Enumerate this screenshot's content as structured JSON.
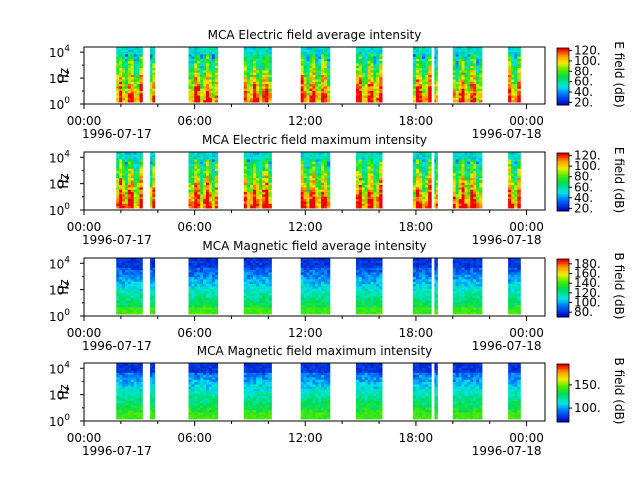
{
  "chart_data": [
    {
      "type": "heatmap",
      "title": "MCA  Electric field average intensity",
      "ylabel": "Hz",
      "yscale": "log",
      "y_tick_labels": [
        "10^0",
        "10^2",
        "10^4"
      ],
      "ylim": [
        "10^0",
        "10^4.4"
      ],
      "x_tick_labels": [
        "00:00",
        "06:00",
        "12:00",
        "18:00",
        "00:00"
      ],
      "x_date_labels": [
        "1996-07-17",
        "1996-07-18"
      ],
      "xlim": [
        "1996-07-17 00:00",
        "1996-07-18 01:00"
      ],
      "colorbar": {
        "label": "E field (dB)",
        "tick_labels": [
          "20.",
          "40.",
          "60.",
          "80.",
          "100.",
          "120."
        ],
        "range": [
          15,
          125
        ]
      },
      "colormap": "rainbow",
      "data_intervals": [
        [
          "01:45",
          "03:10"
        ],
        [
          "03:35",
          "03:50"
        ],
        [
          "05:40",
          "07:15"
        ],
        [
          "08:40",
          "10:10"
        ],
        [
          "11:45",
          "13:20"
        ],
        [
          "14:45",
          "16:10"
        ],
        [
          "17:50",
          "18:50"
        ],
        [
          "19:00",
          "19:10"
        ],
        [
          "20:00",
          "21:35"
        ],
        [
          "23:00",
          "23:40"
        ]
      ],
      "note_levels": "intensity higher at low frequency"
    },
    {
      "type": "heatmap",
      "title": "MCA  Electric field maximum intensity",
      "ylabel": "Hz",
      "yscale": "log",
      "y_tick_labels": [
        "10^0",
        "10^2",
        "10^4"
      ],
      "ylim": [
        "10^0",
        "10^4.4"
      ],
      "x_tick_labels": [
        "00:00",
        "06:00",
        "12:00",
        "18:00",
        "00:00"
      ],
      "x_date_labels": [
        "1996-07-17",
        "1996-07-18"
      ],
      "xlim": [
        "1996-07-17 00:00",
        "1996-07-18 01:00"
      ],
      "colorbar": {
        "label": "E field (dB)",
        "tick_labels": [
          "20.",
          "40.",
          "60.",
          "80.",
          "100.",
          "120."
        ],
        "range": [
          15,
          125
        ]
      },
      "colormap": "rainbow",
      "data_intervals": [
        [
          "01:45",
          "03:10"
        ],
        [
          "03:35",
          "03:50"
        ],
        [
          "05:40",
          "07:15"
        ],
        [
          "08:40",
          "10:10"
        ],
        [
          "11:45",
          "13:20"
        ],
        [
          "14:45",
          "16:10"
        ],
        [
          "17:50",
          "18:50"
        ],
        [
          "19:00",
          "19:10"
        ],
        [
          "20:00",
          "21:35"
        ],
        [
          "23:00",
          "23:40"
        ]
      ]
    },
    {
      "type": "heatmap",
      "title": "MCA  Magnetic field average intensity",
      "ylabel": "Hz",
      "yscale": "log",
      "y_tick_labels": [
        "10^0",
        "10^2",
        "10^4"
      ],
      "ylim": [
        "10^0",
        "10^4.4"
      ],
      "x_tick_labels": [
        "00:00",
        "06:00",
        "12:00",
        "18:00",
        "00:00"
      ],
      "x_date_labels": [
        "1996-07-17",
        "1996-07-18"
      ],
      "xlim": [
        "1996-07-17 00:00",
        "1996-07-18 01:00"
      ],
      "colorbar": {
        "label": "B field (dB)",
        "tick_labels": [
          "80.",
          "100.",
          "120.",
          "140.",
          "160.",
          "180."
        ],
        "range": [
          70,
          190
        ]
      },
      "colormap": "rainbow",
      "data_intervals": [
        [
          "01:45",
          "03:10"
        ],
        [
          "03:35",
          "03:50"
        ],
        [
          "05:40",
          "07:15"
        ],
        [
          "08:40",
          "10:10"
        ],
        [
          "11:45",
          "13:20"
        ],
        [
          "14:45",
          "16:10"
        ],
        [
          "17:50",
          "18:50"
        ],
        [
          "19:00",
          "19:10"
        ],
        [
          "20:00",
          "21:35"
        ],
        [
          "23:00",
          "23:40"
        ]
      ]
    },
    {
      "type": "heatmap",
      "title": "MCA  Magnetic field maximum intensity",
      "ylabel": "Hz",
      "yscale": "log",
      "y_tick_labels": [
        "10^0",
        "10^2",
        "10^4"
      ],
      "ylim": [
        "10^0",
        "10^4.4"
      ],
      "x_tick_labels": [
        "00:00",
        "06:00",
        "12:00",
        "18:00",
        "00:00"
      ],
      "x_date_labels": [
        "1996-07-17",
        "1996-07-18"
      ],
      "xlim": [
        "1996-07-17 00:00",
        "1996-07-18 01:00"
      ],
      "colorbar": {
        "label": "B field (dB)",
        "tick_labels": [
          "100.",
          "150."
        ],
        "range": [
          70,
          195
        ]
      },
      "colormap": "rainbow",
      "data_intervals": [
        [
          "01:45",
          "03:10"
        ],
        [
          "03:35",
          "03:50"
        ],
        [
          "05:40",
          "07:15"
        ],
        [
          "08:40",
          "10:10"
        ],
        [
          "11:45",
          "13:20"
        ],
        [
          "14:45",
          "16:10"
        ],
        [
          "17:50",
          "18:50"
        ],
        [
          "19:00",
          "19:10"
        ],
        [
          "20:00",
          "21:35"
        ],
        [
          "23:00",
          "23:40"
        ]
      ]
    }
  ]
}
